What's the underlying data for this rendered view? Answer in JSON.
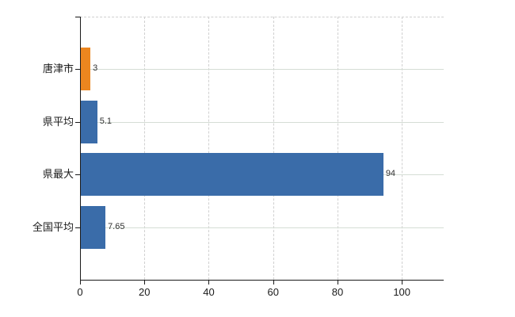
{
  "chart_data": {
    "type": "bar",
    "orientation": "horizontal",
    "title": "",
    "xlabel": "",
    "ylabel": "",
    "categories": [
      "唐津市",
      "県平均",
      "県最大",
      "全国平均"
    ],
    "values": [
      3,
      5.1,
      94,
      7.65
    ],
    "value_labels": [
      "3",
      "5.1",
      "94",
      "7.65"
    ],
    "bar_colors": [
      "#ec861f",
      "#3a6ca9",
      "#3a6ca9",
      "#3a6ca9"
    ],
    "x_ticks": [
      0,
      20,
      40,
      60,
      80,
      100
    ],
    "xlim": [
      0,
      113
    ],
    "legend": "none",
    "grid": {
      "vertical_at_ticks": "dashed",
      "horizontal_at_category_centers": "solid",
      "top_border": "dashed"
    }
  },
  "colors": {
    "background": "#ffffff",
    "axis": "#1a1a1a",
    "grid_vertical": "#d0d0d0",
    "grid_horizontal": "#d5ddd5",
    "label_text": "#1a1a1a",
    "value_text": "#333333"
  }
}
